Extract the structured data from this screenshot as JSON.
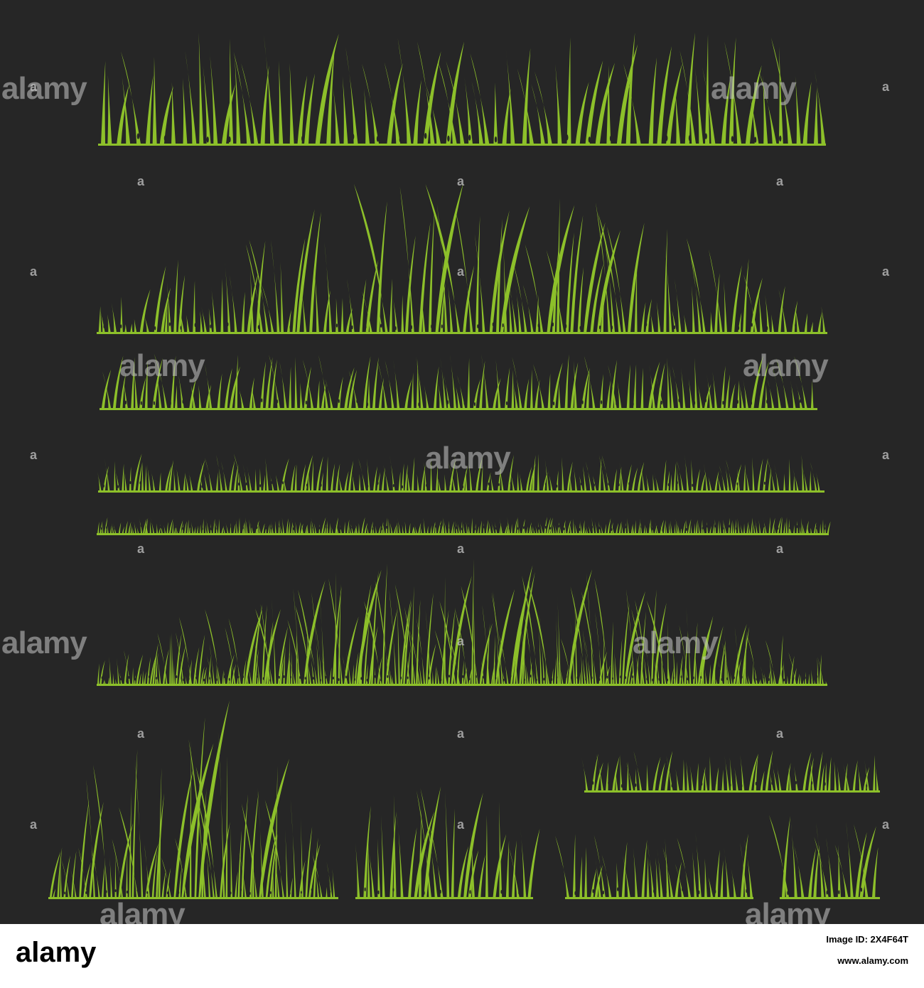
{
  "colors": {
    "background": "#262626",
    "grass": "#8dc02a",
    "footer_background": "#ffffff",
    "footer_text": "#000000"
  },
  "watermark": {
    "text": "alamy",
    "small_mark": "a"
  },
  "footer": {
    "logo": "alamy",
    "image_id_label": "Image ID: 2X4F64T",
    "url": "www.alamy.com"
  }
}
